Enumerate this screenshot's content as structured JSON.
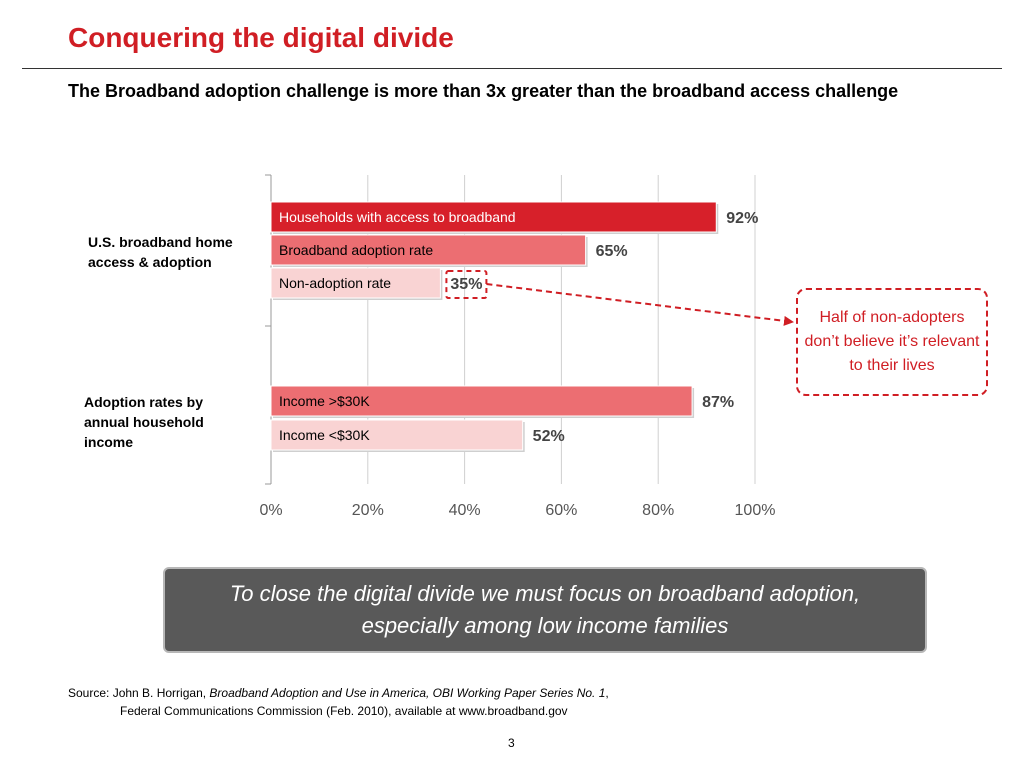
{
  "header": {
    "title": "Conquering the digital divide",
    "subtitle": "The Broadband adoption challenge is more than 3x greater than the broadband access challenge"
  },
  "groups": {
    "g1_label": "U.S. broadband home access & adoption",
    "g2_label": "Adoption rates by annual household income"
  },
  "callout": {
    "text": "Half of non-adopters don’t believe it’s relevant to their lives"
  },
  "conclusion": {
    "text": "To close the digital divide we must focus on broadband adoption, especially among low income families"
  },
  "source": {
    "prefix": "Source: John B. Horrigan, ",
    "title": "Broadband Adoption and Use in America, OBI Working Paper Series No. 1",
    "comma": ",",
    "line2": "Federal Communications Commission (Feb. 2010), available at www.broadband.gov"
  },
  "page_number": "3",
  "colors": {
    "accent": "#d01e24",
    "bar_dark": "#d7202a",
    "bar_mid": "#ec6e72",
    "bar_light": "#f9d3d3"
  },
  "chart_data": {
    "type": "bar",
    "orientation": "horizontal",
    "xlim": [
      0,
      100
    ],
    "x_ticks": [
      "0%",
      "20%",
      "40%",
      "60%",
      "80%",
      "100%"
    ],
    "grid": true,
    "bars": [
      {
        "label": "Households with access to broadband",
        "value": 92,
        "value_label": "92%",
        "color": "#d7202a",
        "text_color": "#ffffff",
        "group": 1
      },
      {
        "label": "Broadband adoption rate",
        "value": 65,
        "value_label": "65%",
        "color": "#ec6e72",
        "text_color": "#000000",
        "group": 1
      },
      {
        "label": "Non-adoption rate",
        "value": 35,
        "value_label": "35%",
        "color": "#f9d3d3",
        "text_color": "#000000",
        "group": 1,
        "highlight": true
      },
      {
        "label": "Income >$30K",
        "value": 87,
        "value_label": "87%",
        "color": "#ec6e72",
        "text_color": "#000000",
        "group": 2
      },
      {
        "label": "Income <$30K",
        "value": 52,
        "value_label": "52%",
        "color": "#f9d3d3",
        "text_color": "#000000",
        "group": 2
      }
    ]
  }
}
